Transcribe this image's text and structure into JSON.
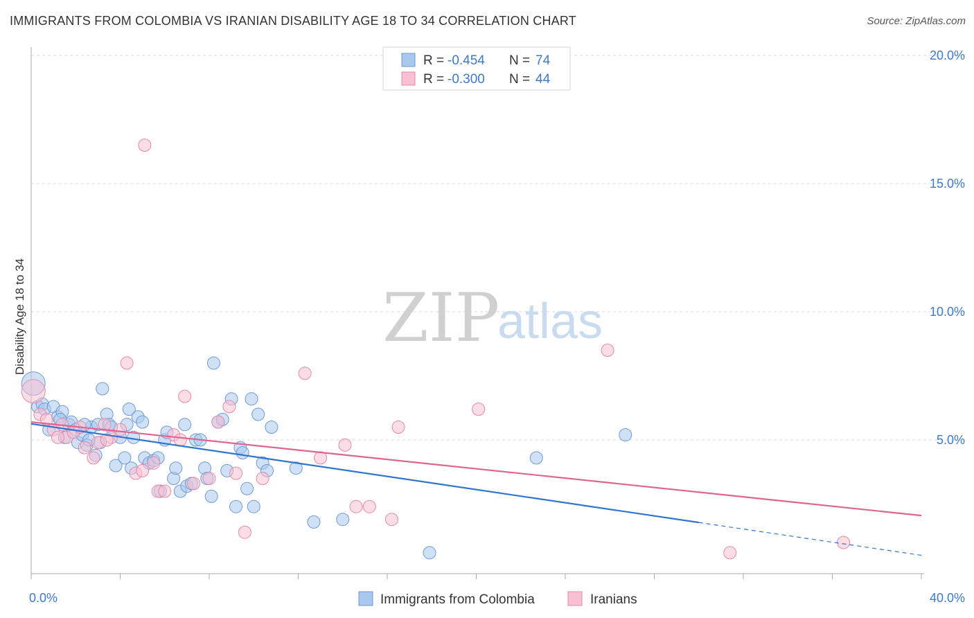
{
  "title": "IMMIGRANTS FROM COLOMBIA VS IRANIAN DISABILITY AGE 18 TO 34 CORRELATION CHART",
  "source": "Source: ZipAtlas.com",
  "watermark": {
    "zip": "ZIP",
    "atlas": "atlas"
  },
  "colors": {
    "blue_fill": "#a9c8ee",
    "blue_stroke": "#6d9ad6",
    "blue_line": "#2f74d0",
    "pink_fill": "#f8c1d2",
    "pink_stroke": "#e48aa8",
    "pink_line": "#e0648f",
    "tick": "#3d7ac9",
    "grid": "#d8d8d8"
  },
  "legend_top": [
    {
      "r_label": "R = ",
      "r_value": "-0.454",
      "n_label": "N = ",
      "n_value": "74",
      "series": "blue"
    },
    {
      "r_label": "R = ",
      "r_value": "-0.300",
      "n_label": "N = ",
      "n_value": "44",
      "series": "pink"
    }
  ],
  "legend_bottom": [
    {
      "label": "Immigrants from Colombia",
      "series": "blue"
    },
    {
      "label": "Iranians",
      "series": "pink"
    }
  ],
  "chart_data": {
    "type": "scatter",
    "title": "IMMIGRANTS FROM COLOMBIA VS IRANIAN DISABILITY AGE 18 TO 34 CORRELATION CHART",
    "xlabel": "",
    "ylabel": "Disability Age 18 to 34",
    "xlim": [
      0,
      40
    ],
    "ylim": [
      0,
      20
    ],
    "x_tick_labels": [
      "0.0%",
      "40.0%"
    ],
    "y_ticks": [
      {
        "value": 5,
        "label": "5.0%"
      },
      {
        "value": 10,
        "label": "10.0%"
      },
      {
        "value": 15,
        "label": "15.0%"
      },
      {
        "value": 20,
        "label": "20.0%"
      }
    ],
    "grid": true,
    "legend_placement": "top-center",
    "series": [
      {
        "name": "Immigrants from Colombia",
        "color": "blue",
        "points": [
          [
            0.1,
            7.2
          ],
          [
            0.3,
            6.3
          ],
          [
            0.5,
            6.4
          ],
          [
            0.6,
            6.2
          ],
          [
            0.8,
            5.4
          ],
          [
            1.0,
            6.3
          ],
          [
            1.2,
            5.9
          ],
          [
            1.4,
            6.1
          ],
          [
            1.5,
            5.1
          ],
          [
            1.7,
            5.6
          ],
          [
            1.8,
            5.7
          ],
          [
            2.0,
            5.4
          ],
          [
            2.1,
            4.9
          ],
          [
            2.3,
            5.2
          ],
          [
            2.5,
            4.8
          ],
          [
            2.6,
            5.0
          ],
          [
            2.7,
            5.5
          ],
          [
            2.9,
            4.4
          ],
          [
            3.0,
            5.6
          ],
          [
            3.1,
            4.9
          ],
          [
            3.2,
            7.0
          ],
          [
            3.4,
            6.0
          ],
          [
            3.5,
            5.6
          ],
          [
            3.6,
            5.5
          ],
          [
            3.8,
            4.0
          ],
          [
            4.0,
            5.1
          ],
          [
            4.2,
            4.3
          ],
          [
            4.4,
            6.2
          ],
          [
            4.5,
            3.9
          ],
          [
            4.6,
            5.1
          ],
          [
            4.8,
            5.9
          ],
          [
            5.0,
            5.7
          ],
          [
            5.1,
            4.3
          ],
          [
            5.3,
            4.1
          ],
          [
            5.5,
            4.2
          ],
          [
            5.7,
            4.3
          ],
          [
            5.8,
            3.0
          ],
          [
            6.0,
            5.0
          ],
          [
            6.1,
            5.3
          ],
          [
            6.4,
            3.5
          ],
          [
            6.5,
            3.9
          ],
          [
            6.7,
            3.0
          ],
          [
            6.9,
            5.6
          ],
          [
            7.0,
            3.2
          ],
          [
            7.2,
            3.3
          ],
          [
            7.4,
            5.0
          ],
          [
            7.6,
            5.0
          ],
          [
            7.8,
            3.9
          ],
          [
            7.9,
            3.5
          ],
          [
            8.1,
            2.8
          ],
          [
            8.2,
            8.0
          ],
          [
            8.4,
            5.7
          ],
          [
            8.6,
            5.8
          ],
          [
            8.8,
            3.8
          ],
          [
            9.0,
            6.6
          ],
          [
            9.2,
            2.4
          ],
          [
            9.4,
            4.7
          ],
          [
            9.5,
            4.5
          ],
          [
            9.7,
            3.1
          ],
          [
            9.9,
            6.6
          ],
          [
            10.0,
            2.4
          ],
          [
            10.2,
            6.0
          ],
          [
            10.4,
            4.1
          ],
          [
            10.6,
            3.8
          ],
          [
            10.8,
            5.5
          ],
          [
            11.9,
            3.9
          ],
          [
            12.7,
            1.8
          ],
          [
            14.0,
            1.9
          ],
          [
            17.9,
            0.6
          ],
          [
            22.7,
            4.3
          ],
          [
            26.7,
            5.2
          ],
          [
            4.3,
            5.6
          ],
          [
            2.4,
            5.6
          ],
          [
            1.3,
            5.8
          ]
        ]
      },
      {
        "name": "Iranians",
        "color": "pink",
        "points": [
          [
            0.1,
            6.9
          ],
          [
            0.4,
            6.0
          ],
          [
            0.7,
            5.8
          ],
          [
            1.0,
            5.4
          ],
          [
            1.4,
            5.6
          ],
          [
            1.6,
            5.1
          ],
          [
            1.9,
            5.3
          ],
          [
            2.2,
            5.5
          ],
          [
            2.4,
            4.7
          ],
          [
            2.8,
            4.3
          ],
          [
            3.0,
            4.9
          ],
          [
            3.3,
            5.6
          ],
          [
            3.6,
            5.1
          ],
          [
            4.0,
            5.4
          ],
          [
            4.3,
            8.0
          ],
          [
            4.7,
            3.7
          ],
          [
            5.0,
            3.8
          ],
          [
            5.1,
            16.5
          ],
          [
            5.5,
            4.1
          ],
          [
            5.7,
            3.0
          ],
          [
            6.0,
            3.0
          ],
          [
            6.4,
            5.2
          ],
          [
            6.7,
            5.0
          ],
          [
            6.9,
            6.7
          ],
          [
            7.3,
            3.3
          ],
          [
            8.0,
            3.5
          ],
          [
            8.4,
            5.7
          ],
          [
            8.9,
            6.3
          ],
          [
            9.2,
            3.7
          ],
          [
            9.6,
            1.4
          ],
          [
            10.4,
            3.5
          ],
          [
            12.3,
            7.6
          ],
          [
            13.0,
            4.3
          ],
          [
            14.1,
            4.8
          ],
          [
            14.6,
            2.4
          ],
          [
            15.2,
            2.4
          ],
          [
            16.2,
            1.9
          ],
          [
            16.5,
            5.5
          ],
          [
            20.1,
            6.2
          ],
          [
            25.9,
            8.5
          ],
          [
            31.4,
            0.6
          ],
          [
            36.5,
            1.0
          ],
          [
            3.4,
            5.0
          ],
          [
            1.2,
            5.1
          ]
        ]
      }
    ],
    "trend_lines": [
      {
        "series": "Immigrants from Colombia",
        "x_start": 0,
        "y_start": 5.63,
        "x_solid_end": 30,
        "y_solid_end": 1.78,
        "x_end": 40,
        "y_end": 0.5
      },
      {
        "series": "Iranians",
        "x_start": 0,
        "y_start": 5.7,
        "x_end": 40,
        "y_end": 2.05
      }
    ]
  }
}
